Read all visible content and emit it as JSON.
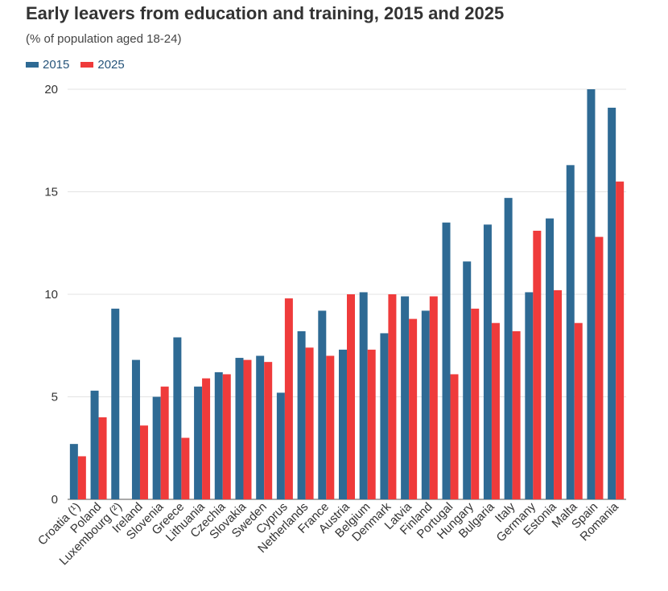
{
  "chart_data": {
    "type": "bar",
    "title": "Early leavers from education and training, 2015 and 2025",
    "subtitle": "(% of population aged 18-24)",
    "categories": [
      "Croatia (¹)",
      "Poland",
      "Luxembourg (²)",
      "Ireland",
      "Slovenia",
      "Greece",
      "Lithuania",
      "Czechia",
      "Slovakia",
      "Sweden",
      "Cyprus",
      "Netherlands",
      "France",
      "Austria",
      "Belgium",
      "Denmark",
      "Latvia",
      "Finland",
      "Portugal",
      "Hungary",
      "Bulgaria",
      "Italy",
      "Germany",
      "Estonia",
      "Malta",
      "Spain",
      "Romania"
    ],
    "series": [
      {
        "name": "2015",
        "color": "#2e6a94",
        "values": [
          2.7,
          5.3,
          9.3,
          6.8,
          5.0,
          7.9,
          5.5,
          6.2,
          6.9,
          7.0,
          5.2,
          8.2,
          9.2,
          7.3,
          10.1,
          8.1,
          9.9,
          9.2,
          13.5,
          11.6,
          13.4,
          14.7,
          10.1,
          13.7,
          16.3,
          20.0,
          19.1
        ]
      },
      {
        "name": "2025",
        "color": "#ef3b3b",
        "values": [
          2.1,
          4.0,
          null,
          3.6,
          5.5,
          3.0,
          5.9,
          6.1,
          6.8,
          6.7,
          9.8,
          7.4,
          7.0,
          10.0,
          7.3,
          10.0,
          8.8,
          9.9,
          6.1,
          9.3,
          8.6,
          8.2,
          13.1,
          10.2,
          8.6,
          12.8,
          15.5
        ]
      }
    ],
    "yticks": [
      0,
      5,
      10,
      15,
      20
    ],
    "ylim": [
      0,
      20
    ],
    "grid": true,
    "legend_position": "top-left"
  }
}
